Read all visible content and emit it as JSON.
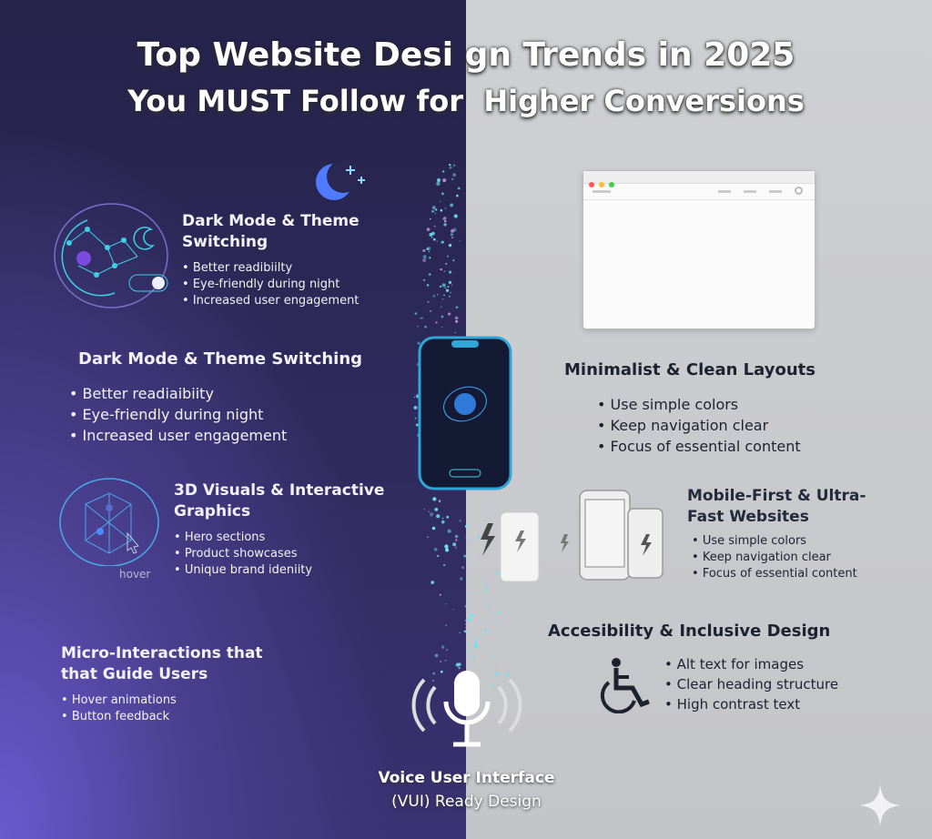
{
  "title": {
    "line1": "Top Website Desi gn Trends in 2025",
    "line2": "You MUST Follow for  Higher Conversions"
  },
  "sections": {
    "dark_mode_small": {
      "heading": "Dark Mode & Theme Switching",
      "items": [
        "Better readibiilty",
        "Eye-friendly during night",
        "Increased user engagement"
      ]
    },
    "dark_mode_large": {
      "heading": "Dark Mode & Theme Switching",
      "items": [
        "Better readiaibiity",
        "Eye-friendly during night",
        "Increased user engagement"
      ]
    },
    "visuals_3d": {
      "heading": "3D Visuals & Interactive Graphics",
      "items": [
        "Hero sections",
        "Product showcases",
        "Unique brand ideniity"
      ],
      "hover_label": "hover"
    },
    "micro": {
      "heading": "Micro-Interactions that that Guide Users",
      "items": [
        "Hover animations",
        "Button feedback"
      ]
    },
    "voice": {
      "heading_line1": "Voice User Interface",
      "heading_line2": "(VUI) Ready Design"
    },
    "minimalist": {
      "heading": "Minimalist & Clean Layouts",
      "items": [
        "Use simple colors",
        "Keep navigation clear",
        "Focus of essential content"
      ]
    },
    "mobile": {
      "heading": "Mobile-First & Ultra-Fast Websites",
      "items": [
        "Use simple colors",
        "Keep navigation clear",
        "Focus of essential content"
      ]
    },
    "accessibility": {
      "heading": "Accesibility & Inclusive Design",
      "items": [
        "Alt text for images",
        "Clear heading structure",
        "High contrast text"
      ]
    }
  },
  "colors": {
    "left_bg": "#2a2752",
    "left_accent": "#6b5ad0",
    "right_bg": "#c9cacd",
    "cyan": "#3fd0e6"
  }
}
